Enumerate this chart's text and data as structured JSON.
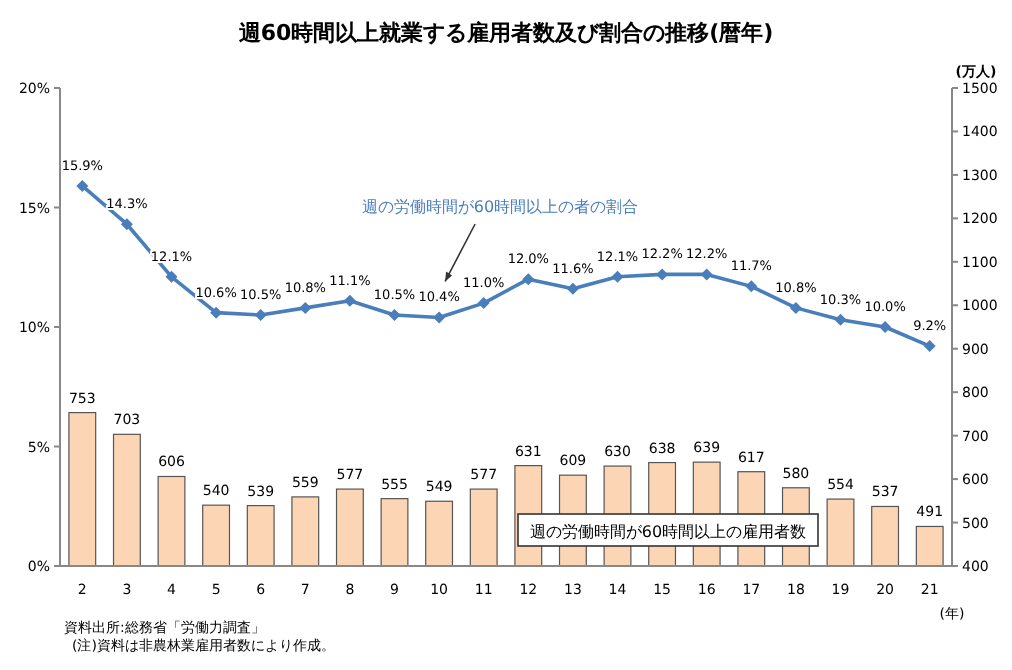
{
  "chart_data": {
    "type": "bar",
    "title": "週60時間以上就業する雇用者数及び割合の推移(暦年)",
    "categories": [
      "2",
      "3",
      "4",
      "5",
      "6",
      "7",
      "8",
      "9",
      "10",
      "11",
      "12",
      "13",
      "14",
      "15",
      "16",
      "17",
      "18",
      "19",
      "20",
      "21"
    ],
    "xlabel": "(年)",
    "y2label": "(万人)",
    "ylim": [
      0,
      20
    ],
    "yticks": [
      {
        "value": 0,
        "label": "0%"
      },
      {
        "value": 5,
        "label": "5%"
      },
      {
        "value": 10,
        "label": "10%"
      },
      {
        "value": 15,
        "label": "15%"
      },
      {
        "value": 20,
        "label": "20%"
      }
    ],
    "y2lim": [
      400,
      1500
    ],
    "y2ticks": [
      400,
      500,
      600,
      700,
      800,
      900,
      1000,
      1100,
      1200,
      1300,
      1400,
      1500
    ],
    "series": [
      {
        "axis": "y2",
        "name": "週の労働時間が60時間以上の雇用者数",
        "color": "#fcd5b5",
        "values": [
          753,
          703,
          606,
          540,
          539,
          559,
          577,
          555,
          549,
          577,
          631,
          609,
          630,
          638,
          639,
          617,
          580,
          554,
          537,
          491
        ],
        "value_labels": [
          "753",
          "703",
          "606",
          "540",
          "539",
          "559",
          "577",
          "555",
          "549",
          "577",
          "631",
          "609",
          "630",
          "638",
          "639",
          "617",
          "580",
          "554",
          "537",
          "491"
        ]
      },
      {
        "type": "line",
        "name": "週の労働時間が60時間以上の者の割合",
        "color": "#4a7ebb",
        "marker": "diamond",
        "values": [
          15.9,
          14.3,
          12.1,
          10.6,
          10.5,
          10.8,
          11.1,
          10.5,
          10.4,
          11.0,
          12.0,
          11.6,
          12.1,
          12.2,
          12.2,
          11.7,
          10.8,
          10.3,
          10.0,
          9.2
        ],
        "value_labels": [
          "15.9%",
          "14.3%",
          "12.1%",
          "10.6%",
          "10.5%",
          "10.8%",
          "11.1%",
          "10.5%",
          "10.4%",
          "11.0%",
          "12.0%",
          "11.6%",
          "12.1%",
          "12.2%",
          "12.2%",
          "11.7%",
          "10.8%",
          "10.3%",
          "10.0%",
          "9.2%"
        ]
      }
    ],
    "grid": false,
    "annotations": [
      "資料出所:総務省「労働力調査」",
      "(注)資料は非農林業雇用者数により作成。"
    ]
  }
}
